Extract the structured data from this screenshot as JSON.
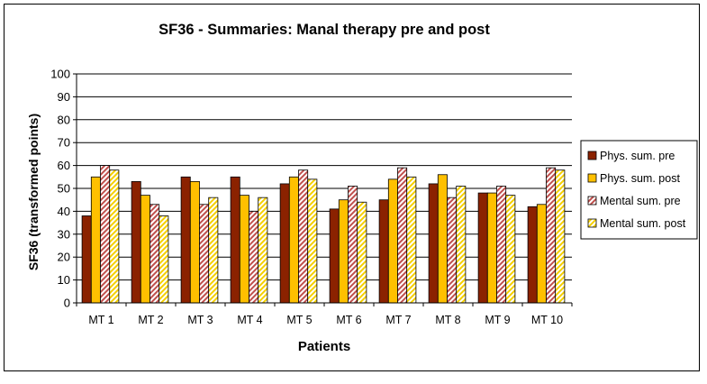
{
  "chart_data": {
    "type": "bar",
    "title": "SF36 - Summaries: Manal therapy pre and post",
    "xlabel": "Patients",
    "ylabel": "SF36 (transformed points)",
    "ylim": [
      0,
      100
    ],
    "yticks": [
      0,
      10,
      20,
      30,
      40,
      50,
      60,
      70,
      80,
      90,
      100
    ],
    "grid": true,
    "legend_position": "right",
    "categories": [
      "MT 1",
      "MT 2",
      "MT 3",
      "MT 4",
      "MT 5",
      "MT 6",
      "MT 7",
      "MT 8",
      "MT 9",
      "MT 10"
    ],
    "series": [
      {
        "name": "Phys. sum. pre",
        "color": "#8B2200",
        "pattern": "solid",
        "values": [
          38,
          53,
          55,
          55,
          52,
          41,
          45,
          52,
          48,
          42
        ]
      },
      {
        "name": "Phys. sum. post",
        "color": "#FFC000",
        "pattern": "solid",
        "values": [
          55,
          47,
          53,
          47,
          55,
          45,
          54,
          56,
          48,
          43
        ]
      },
      {
        "name": "Mental sum. pre",
        "color": "#C0504D",
        "pattern": "diagonal",
        "values": [
          60,
          43,
          43,
          40,
          58,
          51,
          59,
          46,
          51,
          59
        ]
      },
      {
        "name": "Mental sum. post",
        "color": "#E6C200",
        "pattern": "diagonal-light",
        "values": [
          58,
          38,
          46,
          46,
          54,
          44,
          55,
          51,
          47,
          58
        ]
      }
    ]
  }
}
